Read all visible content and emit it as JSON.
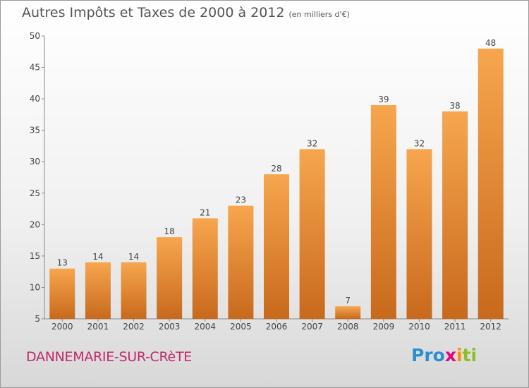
{
  "header": {
    "title": "Autres Impôts et Taxes de 2000 à 2012",
    "subtitle": "(en milliers d'€)"
  },
  "footer": {
    "commune": "DANNEMARIE-SUR-CRèTE",
    "logo_parts": [
      "Pro",
      "x",
      "i",
      "ti"
    ]
  },
  "chart_data": {
    "type": "bar",
    "title": "Autres Impôts et Taxes de 2000 à 2012",
    "subtitle": "(en milliers d'€)",
    "xlabel": "",
    "ylabel": "",
    "categories": [
      "2000",
      "2001",
      "2002",
      "2003",
      "2004",
      "2005",
      "2006",
      "2007",
      "2008",
      "2009",
      "2010",
      "2011",
      "2012"
    ],
    "values": [
      13,
      14,
      14,
      18,
      21,
      23,
      28,
      32,
      7,
      39,
      32,
      38,
      48
    ],
    "ylim": [
      5,
      50
    ],
    "yticks": [
      5,
      10,
      15,
      20,
      25,
      30,
      35,
      40,
      45,
      50
    ],
    "grid": false,
    "legend": "none",
    "colors": {
      "bar_top": "#f7a64e",
      "bar_bottom": "#c8691c",
      "axis": "#888888",
      "label": "#444444"
    }
  }
}
